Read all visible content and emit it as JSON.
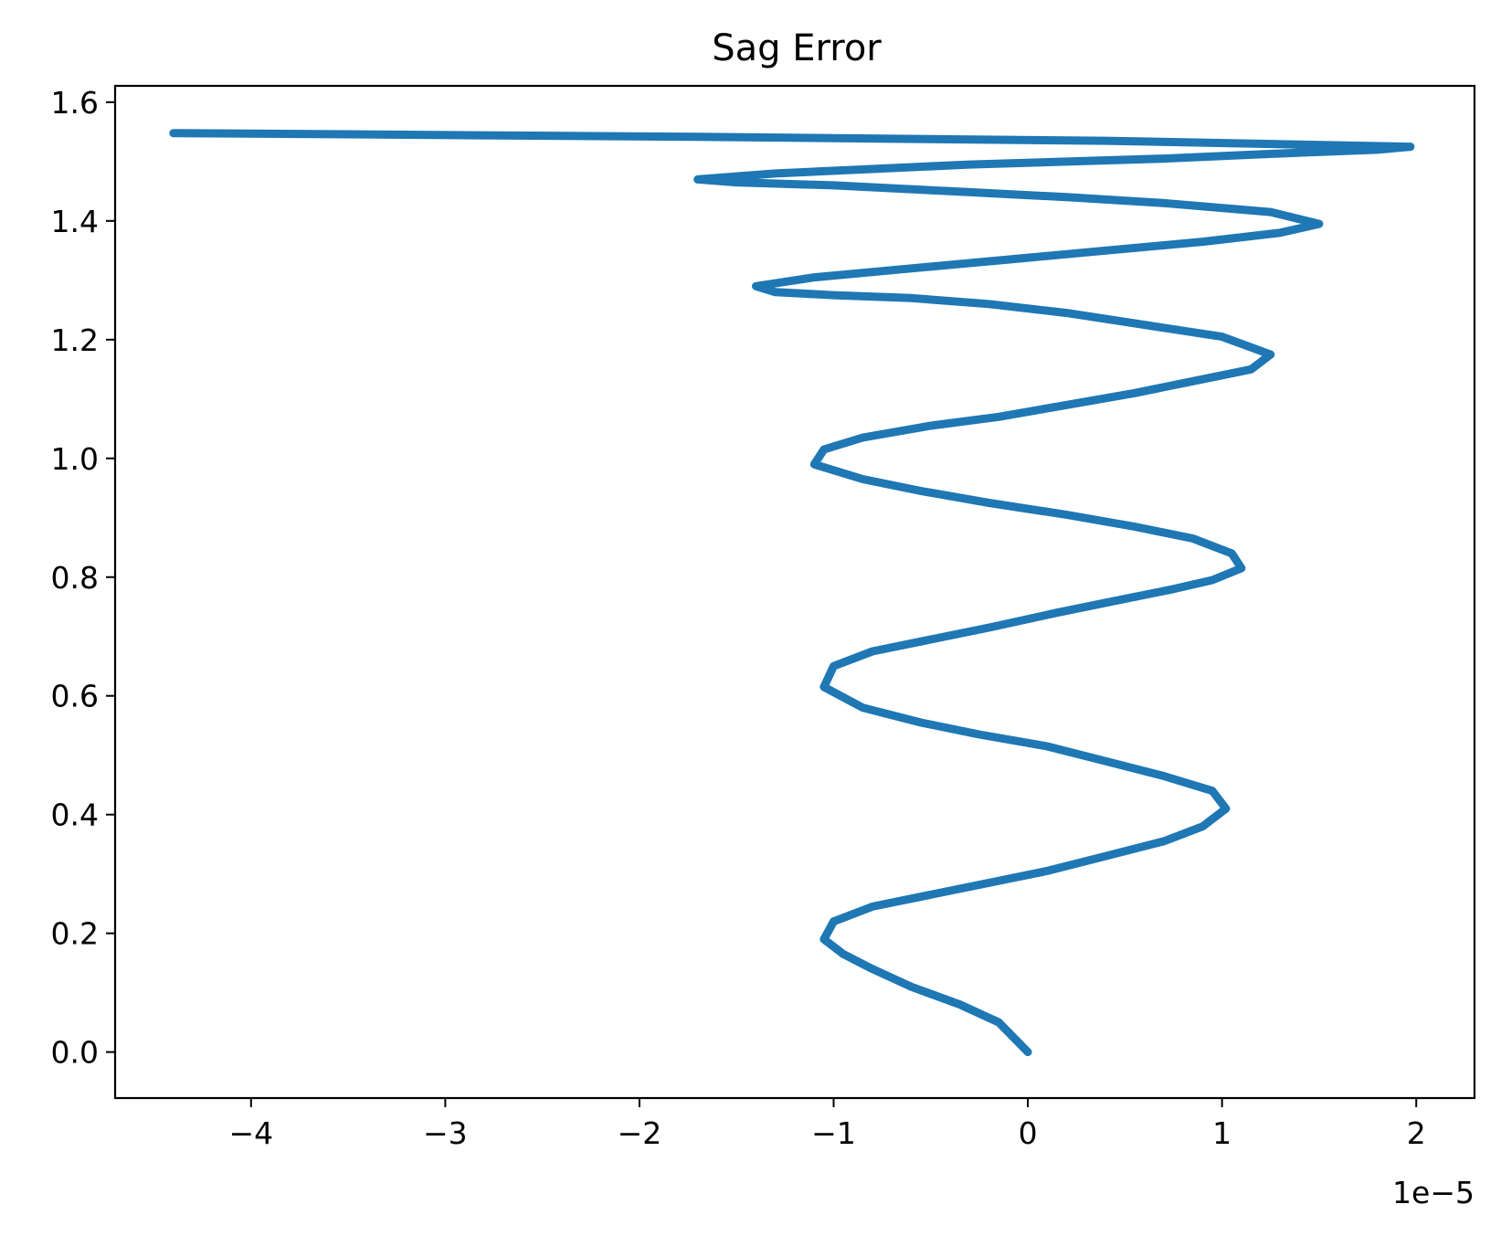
{
  "chart_data": {
    "type": "line",
    "title": "Sag Error",
    "xlabel": "",
    "ylabel": "",
    "x_offset_label": "1e−5",
    "x_scale": 1e-05,
    "xlim": [
      -4.7e-05,
      2.3e-05
    ],
    "ylim": [
      -0.0775,
      1.6275
    ],
    "grid": false,
    "legend": "none",
    "color": "#1f77b4",
    "x_ticks": [
      {
        "value": -4e-05,
        "label": "−4"
      },
      {
        "value": -3e-05,
        "label": "−3"
      },
      {
        "value": -2e-05,
        "label": "−2"
      },
      {
        "value": -1e-05,
        "label": "−1"
      },
      {
        "value": 0,
        "label": "0"
      },
      {
        "value": 1e-05,
        "label": "1"
      },
      {
        "value": 2e-05,
        "label": "2"
      }
    ],
    "y_ticks": [
      {
        "value": 0.0,
        "label": "0.0"
      },
      {
        "value": 0.2,
        "label": "0.2"
      },
      {
        "value": 0.4,
        "label": "0.4"
      },
      {
        "value": 0.6,
        "label": "0.6"
      },
      {
        "value": 0.8,
        "label": "0.8"
      },
      {
        "value": 1.0,
        "label": "1.0"
      },
      {
        "value": 1.2,
        "label": "1.2"
      },
      {
        "value": 1.4,
        "label": "1.4"
      },
      {
        "value": 1.6,
        "label": "1.6"
      }
    ],
    "series": [
      {
        "x": [
          0,
          -1.5e-06,
          -3.5e-06,
          -6e-06,
          -8e-06,
          -9.5e-06,
          -1.05e-05,
          -1e-05,
          -8e-06,
          -5e-06,
          -2e-06,
          1e-06,
          4e-06,
          7e-06,
          9e-06,
          1.02e-05,
          9.5e-06,
          7e-06,
          4e-06,
          1e-06,
          -2.5e-06,
          -5.5e-06,
          -8.5e-06,
          -1.05e-05,
          -1e-05,
          -8e-06,
          -5e-06,
          -2e-06,
          1.5e-06,
          4.5e-06,
          7.5e-06,
          9.5e-06,
          1.1e-05,
          1.05e-05,
          8.5e-06,
          5.5e-06,
          2e-06,
          -2e-06,
          -5.5e-06,
          -8.5e-06,
          -1.1e-05,
          -1.05e-05,
          -8.5e-06,
          -5e-06,
          -1.5e-06,
          2e-06,
          5.5e-06,
          8.5e-06,
          1.15e-05,
          1.25e-05,
          1e-05,
          6e-06,
          2e-06,
          -2e-06,
          -6e-06,
          -1e-05,
          -1.3e-05,
          -1.4e-05,
          -1.1e-05,
          -6e-06,
          -1e-06,
          4e-06,
          9e-06,
          1.3e-05,
          1.5e-05,
          1.25e-05,
          7e-06,
          2e-06,
          -4e-06,
          -1e-05,
          -1.5e-05,
          -1.7e-05,
          -1.3e-05,
          -3e-06,
          7e-06,
          1.4e-05,
          1.8e-05,
          1.97e-05,
          4e-06,
          -1.8e-05,
          -4.4e-05
        ],
        "y": [
          0.0,
          0.05,
          0.08,
          0.11,
          0.14,
          0.165,
          0.19,
          0.22,
          0.245,
          0.265,
          0.285,
          0.305,
          0.33,
          0.355,
          0.38,
          0.41,
          0.44,
          0.465,
          0.49,
          0.515,
          0.535,
          0.555,
          0.58,
          0.615,
          0.65,
          0.675,
          0.695,
          0.715,
          0.74,
          0.76,
          0.78,
          0.795,
          0.815,
          0.84,
          0.865,
          0.885,
          0.905,
          0.925,
          0.945,
          0.965,
          0.99,
          1.015,
          1.035,
          1.055,
          1.07,
          1.09,
          1.11,
          1.13,
          1.15,
          1.175,
          1.205,
          1.225,
          1.245,
          1.26,
          1.27,
          1.275,
          1.28,
          1.29,
          1.305,
          1.32,
          1.335,
          1.35,
          1.365,
          1.38,
          1.395,
          1.415,
          1.43,
          1.44,
          1.45,
          1.46,
          1.465,
          1.47,
          1.48,
          1.495,
          1.505,
          1.515,
          1.52,
          1.525,
          1.535,
          1.542,
          1.548
        ]
      }
    ]
  }
}
